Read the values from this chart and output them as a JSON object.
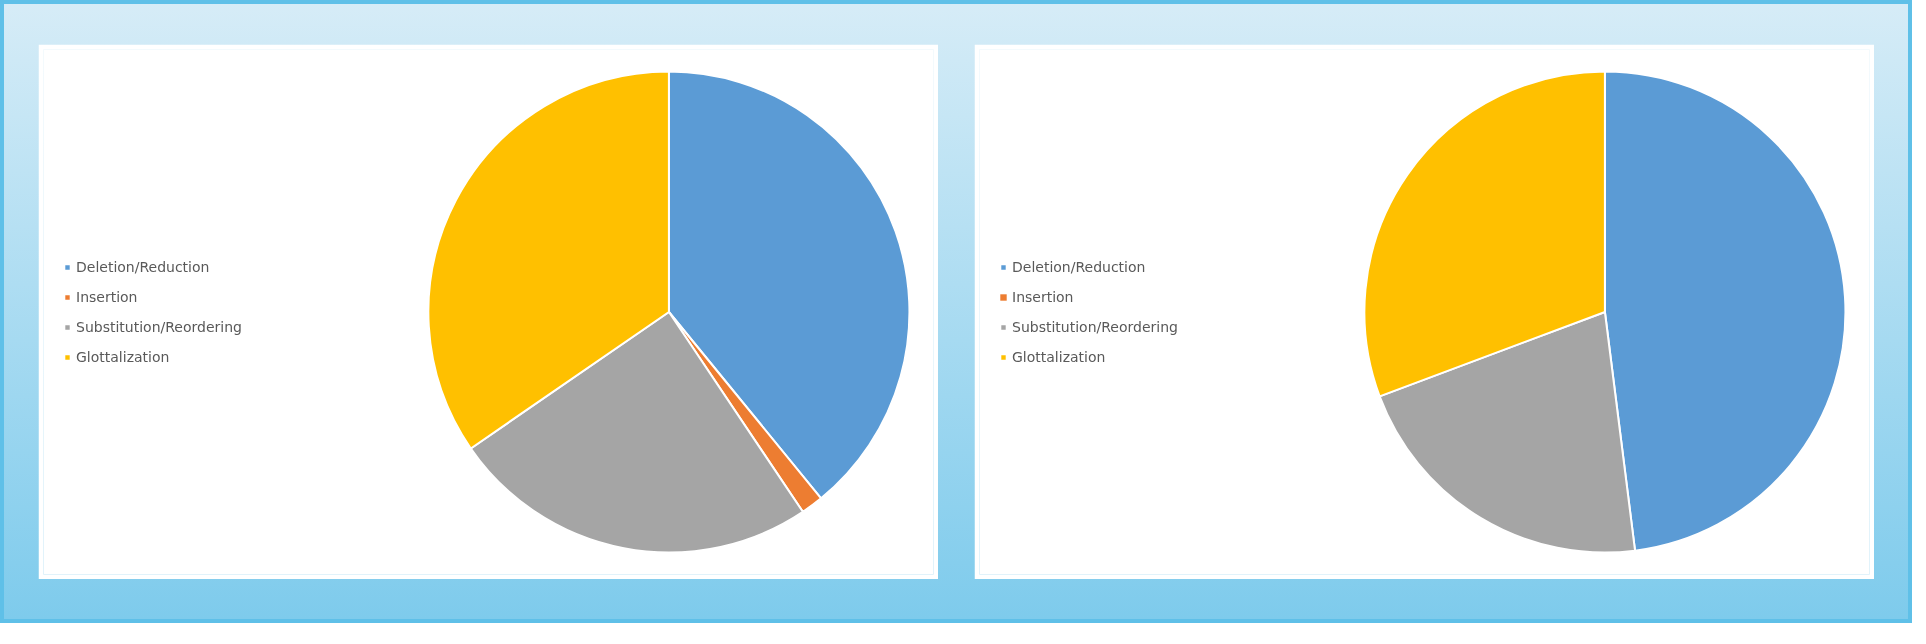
{
  "chart_data": [
    {
      "type": "pie",
      "categories": [
        "Deletion/Reduction",
        "Insertion",
        "Substitution/Reordering",
        "Glottalization"
      ],
      "values": [
        39.1,
        1.5,
        24.8,
        34.6
      ],
      "colors": [
        "#5b9bd5",
        "#ed7d31",
        "#a5a5a5",
        "#ffc000"
      ],
      "legend": "left"
    },
    {
      "type": "pie",
      "categories": [
        "Deletion/Reduction",
        "Insertion",
        "Substitution/Reordering",
        "Glottalization"
      ],
      "values": [
        48.0,
        0,
        21.3,
        30.7
      ],
      "colors": [
        "#5b9bd5",
        "#ed7d31",
        "#a5a5a5",
        "#ffc000"
      ],
      "legend": "left"
    }
  ]
}
